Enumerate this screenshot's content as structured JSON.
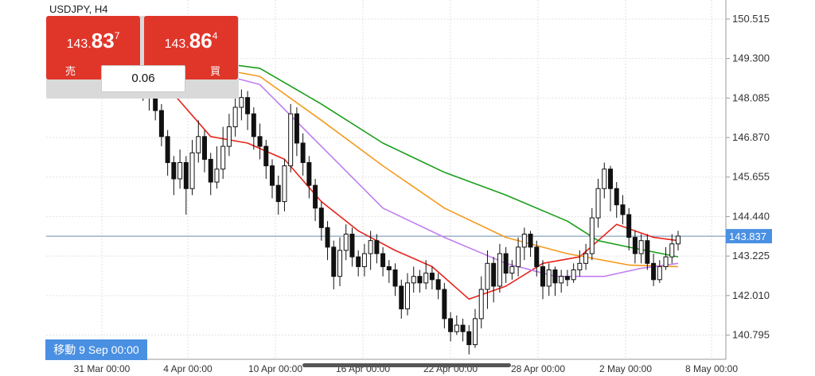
{
  "symbol_title": "USDJPY, H4",
  "sell": {
    "price_small": "143.",
    "price_big": "83",
    "price_sup": "7",
    "label": "売"
  },
  "buy": {
    "price_small": "143.",
    "price_big": "86",
    "price_sup": "4",
    "label": "買"
  },
  "spread": "0.06",
  "scroll_badge": "移動 9 Sep 00:00",
  "colors": {
    "sell_button": "#e0362a",
    "buy_button": "#e0362a",
    "current_price": "#4a90e2",
    "ma_red": "#e8231a",
    "ma_green": "#1a9e1a",
    "ma_orange": "#f39a1d",
    "ma_purple": "#c07ef0"
  },
  "chart_data": {
    "type": "candlestick",
    "y_ticks": [
      "150.515",
      "149.300",
      "148.085",
      "146.870",
      "145.655",
      "144.440",
      "143.225",
      "142.010",
      "140.795"
    ],
    "x_ticks": [
      "31 Mar 00:00",
      "4 Apr 00:00",
      "10 Apr 00:00",
      "16 Apr 00:00",
      "22 Apr 00:00",
      "28 Apr 00:00",
      "2 May 00:00",
      "8 May 00:00"
    ],
    "ylim": [
      140.05,
      151.1
    ],
    "current_price": "143.837",
    "candles": [
      [
        148.95,
        148.6,
        149.05,
        148.3
      ],
      [
        148.6,
        148.35,
        148.75,
        148.0
      ],
      [
        148.35,
        148.1,
        148.55,
        147.7
      ],
      [
        148.1,
        147.7,
        148.3,
        147.4
      ],
      [
        147.7,
        146.9,
        147.9,
        146.6
      ],
      [
        146.9,
        146.1,
        147.1,
        145.7
      ],
      [
        146.1,
        145.6,
        146.3,
        145.1
      ],
      [
        145.6,
        146.1,
        146.5,
        145.3
      ],
      [
        146.1,
        145.3,
        146.3,
        144.5
      ],
      [
        145.3,
        146.4,
        146.8,
        145.1
      ],
      [
        146.4,
        146.9,
        147.4,
        146.1
      ],
      [
        146.9,
        146.2,
        147.1,
        145.8
      ],
      [
        146.2,
        145.5,
        146.4,
        145.1
      ],
      [
        145.5,
        145.9,
        146.6,
        145.3
      ],
      [
        145.9,
        146.6,
        147.2,
        145.6
      ],
      [
        146.6,
        147.2,
        147.6,
        146.3
      ],
      [
        147.2,
        147.8,
        148.2,
        146.9
      ],
      [
        147.8,
        148.1,
        148.35,
        147.4
      ],
      [
        148.1,
        147.6,
        148.3,
        147.1
      ],
      [
        147.6,
        146.9,
        147.8,
        146.5
      ],
      [
        146.9,
        146.6,
        147.3,
        146.2
      ],
      [
        146.6,
        146.0,
        146.8,
        145.6
      ],
      [
        146.0,
        145.4,
        146.2,
        145.0
      ],
      [
        145.4,
        144.9,
        145.7,
        144.5
      ],
      [
        144.9,
        146.0,
        146.2,
        144.6
      ],
      [
        146.0,
        147.6,
        147.9,
        145.8
      ],
      [
        147.6,
        146.7,
        147.8,
        146.3
      ],
      [
        146.7,
        146.1,
        147.0,
        145.7
      ],
      [
        146.1,
        145.4,
        146.3,
        145.0
      ],
      [
        145.4,
        144.7,
        145.6,
        144.3
      ],
      [
        144.7,
        144.1,
        144.9,
        143.7
      ],
      [
        144.1,
        143.5,
        144.3,
        143.1
      ],
      [
        143.5,
        142.6,
        143.7,
        142.2
      ],
      [
        142.6,
        143.4,
        143.8,
        142.3
      ],
      [
        143.4,
        143.9,
        144.2,
        143.1
      ],
      [
        143.9,
        143.2,
        144.1,
        142.9
      ],
      [
        143.2,
        142.9,
        143.4,
        142.6
      ],
      [
        142.9,
        143.3,
        143.6,
        142.6
      ],
      [
        143.3,
        143.7,
        144.0,
        142.8
      ],
      [
        143.7,
        143.3,
        143.9,
        143.0
      ],
      [
        143.3,
        142.9,
        143.5,
        142.6
      ],
      [
        142.9,
        142.8,
        143.1,
        142.4
      ],
      [
        142.8,
        142.3,
        143.0,
        142.0
      ],
      [
        142.3,
        141.6,
        142.5,
        141.3
      ],
      [
        141.6,
        142.4,
        142.7,
        141.4
      ],
      [
        142.4,
        142.6,
        142.9,
        142.1
      ],
      [
        142.6,
        142.4,
        142.8,
        142.1
      ],
      [
        142.4,
        142.7,
        143.1,
        142.2
      ],
      [
        142.7,
        142.5,
        142.9,
        142.2
      ],
      [
        142.5,
        142.2,
        142.7,
        141.9
      ],
      [
        142.2,
        141.3,
        142.4,
        141.0
      ],
      [
        141.3,
        140.9,
        141.5,
        140.6
      ],
      [
        140.9,
        141.1,
        141.4,
        140.8
      ],
      [
        141.1,
        140.9,
        141.3,
        140.6
      ],
      [
        140.9,
        140.5,
        141.1,
        140.2
      ],
      [
        140.5,
        141.3,
        141.6,
        140.4
      ],
      [
        141.3,
        142.2,
        142.6,
        141.0
      ],
      [
        142.2,
        143.0,
        143.4,
        141.6
      ],
      [
        143.0,
        142.3,
        143.2,
        141.8
      ],
      [
        142.3,
        143.3,
        143.6,
        142.1
      ],
      [
        143.3,
        142.7,
        143.5,
        142.4
      ],
      [
        142.7,
        142.9,
        143.1,
        142.5
      ],
      [
        142.9,
        143.5,
        143.8,
        142.6
      ],
      [
        143.5,
        143.9,
        144.1,
        143.1
      ],
      [
        143.9,
        143.5,
        144.0,
        143.2
      ],
      [
        143.5,
        142.9,
        143.7,
        142.6
      ],
      [
        142.9,
        142.3,
        143.1,
        141.9
      ],
      [
        142.3,
        142.8,
        143.0,
        142.0
      ],
      [
        142.8,
        142.4,
        142.9,
        142.0
      ],
      [
        142.4,
        142.6,
        142.8,
        142.1
      ],
      [
        142.6,
        142.5,
        142.8,
        142.3
      ],
      [
        142.5,
        142.8,
        143.0,
        142.4
      ],
      [
        142.8,
        143.0,
        143.4,
        142.6
      ],
      [
        143.0,
        143.3,
        143.6,
        142.8
      ],
      [
        143.3,
        144.4,
        144.7,
        143.1
      ],
      [
        144.4,
        145.3,
        145.6,
        144.1
      ],
      [
        145.3,
        145.9,
        146.1,
        145.0
      ],
      [
        145.9,
        145.3,
        146.0,
        144.6
      ],
      [
        145.3,
        144.8,
        145.5,
        144.4
      ],
      [
        144.8,
        144.5,
        145.1,
        144.2
      ],
      [
        144.5,
        143.8,
        144.7,
        143.4
      ],
      [
        143.8,
        143.3,
        144.0,
        143.0
      ],
      [
        143.3,
        143.7,
        143.9,
        143.0
      ],
      [
        143.7,
        143.0,
        143.9,
        142.8
      ],
      [
        143.0,
        142.5,
        143.3,
        142.3
      ],
      [
        142.5,
        142.9,
        143.1,
        142.4
      ],
      [
        142.9,
        143.2,
        143.5,
        142.8
      ],
      [
        143.2,
        143.6,
        143.9,
        143.0
      ],
      [
        143.6,
        143.84,
        144.0,
        143.4
      ]
    ],
    "moving_averages": [
      {
        "color": "red",
        "values": [
          [
            0,
            149.1
          ],
          [
            6,
            148.2
          ],
          [
            12,
            146.9
          ],
          [
            18,
            146.7
          ],
          [
            24,
            146.2
          ],
          [
            30,
            144.9
          ],
          [
            36,
            144.0
          ],
          [
            42,
            143.4
          ],
          [
            48,
            142.9
          ],
          [
            54,
            141.9
          ],
          [
            60,
            142.3
          ],
          [
            66,
            143.0
          ],
          [
            72,
            143.2
          ],
          [
            78,
            144.2
          ],
          [
            84,
            143.8
          ],
          [
            88,
            143.7
          ]
        ]
      },
      {
        "color": "green",
        "values": [
          [
            0,
            149.4
          ],
          [
            10,
            149.25
          ],
          [
            20,
            149.0
          ],
          [
            30,
            147.9
          ],
          [
            40,
            146.7
          ],
          [
            50,
            145.8
          ],
          [
            60,
            145.1
          ],
          [
            70,
            144.3
          ],
          [
            75,
            143.7
          ],
          [
            80,
            143.5
          ],
          [
            88,
            143.2
          ]
        ]
      },
      {
        "color": "orange",
        "values": [
          [
            0,
            149.3
          ],
          [
            10,
            149.1
          ],
          [
            20,
            148.75
          ],
          [
            30,
            147.4
          ],
          [
            40,
            146.0
          ],
          [
            50,
            144.7
          ],
          [
            60,
            143.8
          ],
          [
            70,
            143.3
          ],
          [
            80,
            142.95
          ],
          [
            88,
            142.9
          ]
        ]
      },
      {
        "color": "purple",
        "values": [
          [
            0,
            149.2
          ],
          [
            10,
            149.0
          ],
          [
            20,
            148.5
          ],
          [
            30,
            146.6
          ],
          [
            40,
            144.7
          ],
          [
            50,
            143.8
          ],
          [
            60,
            143.0
          ],
          [
            68,
            142.6
          ],
          [
            76,
            142.6
          ],
          [
            82,
            142.85
          ],
          [
            88,
            143.0
          ]
        ]
      }
    ]
  }
}
